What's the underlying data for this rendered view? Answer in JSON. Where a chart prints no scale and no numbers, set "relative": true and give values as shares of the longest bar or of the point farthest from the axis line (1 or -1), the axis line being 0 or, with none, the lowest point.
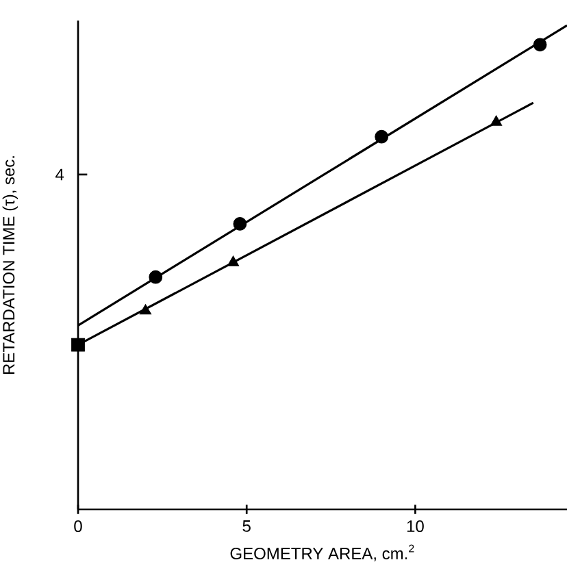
{
  "chart_data": {
    "type": "line",
    "relative": true,
    "xlabel": "GEOMETRY AREA, cm.$^{2}$",
    "ylabel": "RETARDATION TIME (τ), sec.",
    "annotations": [
      "4"
    ],
    "xlim": [
      0,
      14.5
    ],
    "xticks": [
      0,
      5,
      10
    ],
    "grid": false,
    "series": [
      {
        "type": "line",
        "marker": "none",
        "color": "#000000",
        "x": [
          0,
          14.5
        ],
        "values": [
          0.38,
          1.0
        ]
      },
      {
        "type": "line",
        "marker": "none",
        "color": "#000000",
        "x": [
          0,
          13.5
        ],
        "values": [
          0.34,
          0.84
        ]
      },
      {
        "type": "scatter",
        "marker": "circle",
        "color": "#000000",
        "x": [
          2.3,
          4.8,
          9.0,
          13.7
        ],
        "values": [
          0.48,
          0.59,
          0.77,
          0.96
        ]
      },
      {
        "type": "scatter",
        "marker": "triangle",
        "color": "#000000",
        "x": [
          2.0,
          4.6,
          12.4
        ],
        "values": [
          0.41,
          0.51,
          0.8
        ]
      },
      {
        "type": "scatter",
        "marker": "square",
        "color": "#000000",
        "x": [
          0
        ],
        "values": [
          0.34
        ]
      }
    ]
  }
}
